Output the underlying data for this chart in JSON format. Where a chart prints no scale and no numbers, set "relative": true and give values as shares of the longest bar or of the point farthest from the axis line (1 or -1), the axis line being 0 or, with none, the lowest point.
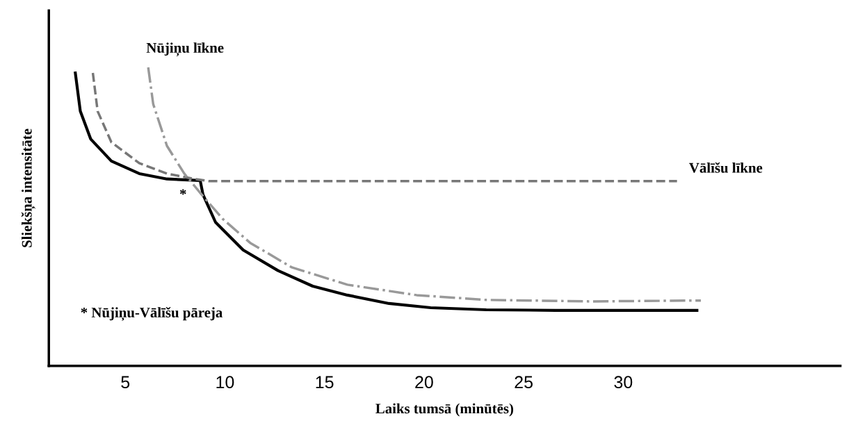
{
  "chart_data": {
    "type": "line",
    "relative": true,
    "xlabel": "Laiks tumsā (minūtēs)",
    "ylabel": "Sliekšņa intensitāte",
    "xlim": [
      1.16,
      40.9
    ],
    "xticks": [
      5,
      10,
      15,
      20,
      25,
      30
    ],
    "grid": false,
    "legend": false,
    "marker": "none",
    "series": [
      {
        "color": "#000000",
        "line_style": "solid",
        "x": [
          2.49,
          2.74,
          3.26,
          4.3,
          5.7,
          7.09,
          8.76,
          8.9,
          9.53,
          10.92,
          12.67,
          14.41,
          16.15,
          18.24,
          20.33,
          23.12,
          26.6,
          33.7
        ],
        "values": [
          0.981,
          0.853,
          0.76,
          0.686,
          0.644,
          0.626,
          0.621,
          0.574,
          0.481,
          0.388,
          0.319,
          0.267,
          0.237,
          0.209,
          0.195,
          0.188,
          0.186,
          0.186
        ]
      },
      {
        "name": "Vālīšu līkne",
        "color": "#777777",
        "line_style": "dashed",
        "x": [
          3.37,
          3.61,
          4.3,
          5.7,
          7.09,
          8.48,
          9.18,
          32.7
        ],
        "values": [
          0.981,
          0.853,
          0.749,
          0.679,
          0.644,
          0.626,
          0.619,
          0.619
        ]
      },
      {
        "name": "Nūjiņu līkne",
        "color": "#999999",
        "line_style": "dashdot",
        "x": [
          6.15,
          6.4,
          7.09,
          7.96,
          8.83,
          9.88,
          11.27,
          13.36,
          16.15,
          19.63,
          23.12,
          28.34,
          33.9
        ],
        "values": [
          1.0,
          0.877,
          0.737,
          0.644,
          0.574,
          0.493,
          0.412,
          0.33,
          0.272,
          0.237,
          0.221,
          0.216,
          0.219
        ]
      }
    ],
    "annotations": [
      "*",
      "* Nūjiņu-Vālīšu pāreja"
    ]
  }
}
